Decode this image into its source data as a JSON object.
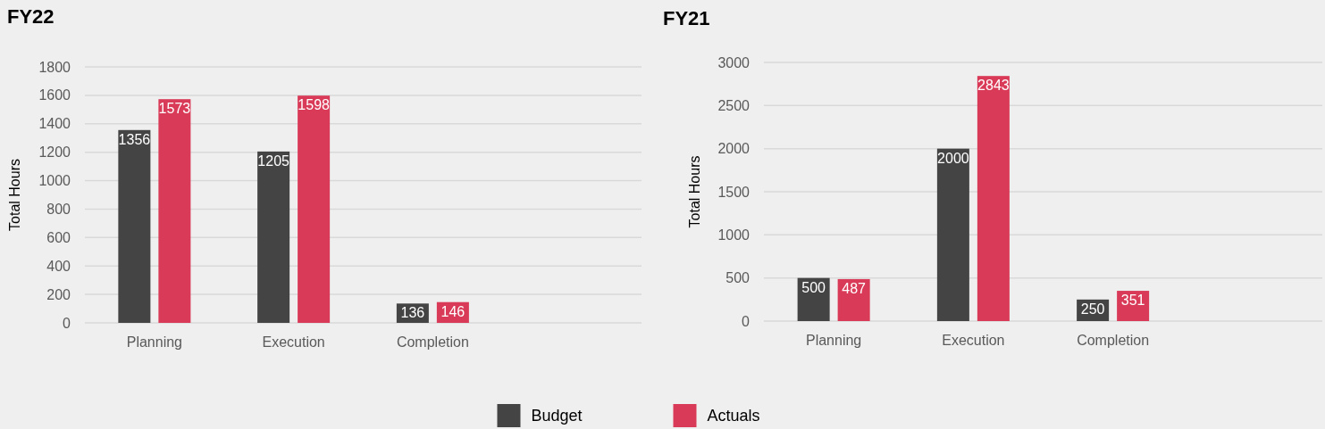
{
  "chart_data": [
    {
      "type": "bar",
      "title": "FY22",
      "ylabel": "Total Hours",
      "categories": [
        "Planning",
        "Execution",
        "Completion",
        null
      ],
      "series": [
        {
          "name": "Budget",
          "color": "#444444",
          "values": [
            1356,
            1205,
            136,
            null
          ]
        },
        {
          "name": "Actuals",
          "color": "#d93a57",
          "values": [
            1573,
            1598,
            146,
            null
          ]
        }
      ],
      "ylim": [
        0,
        1800
      ],
      "yticks": [
        0,
        200,
        400,
        600,
        800,
        1000,
        1200,
        1400,
        1600,
        1800
      ],
      "grid": "y",
      "data_labels": true,
      "legend": "bottom"
    },
    {
      "type": "bar",
      "title": "FY21",
      "ylabel": "Total Hours",
      "categories": [
        "Planning",
        "Execution",
        "Completion",
        null
      ],
      "series": [
        {
          "color": "#444444",
          "values": [
            500,
            2000,
            250,
            null
          ]
        },
        {
          "color": "#d93a57",
          "values": [
            487,
            2843,
            351,
            null
          ]
        }
      ],
      "ylim": [
        0,
        3000
      ],
      "yticks": [
        0,
        500,
        1000,
        1500,
        2000,
        2500,
        3000
      ],
      "grid": "y",
      "data_labels": true
    }
  ]
}
